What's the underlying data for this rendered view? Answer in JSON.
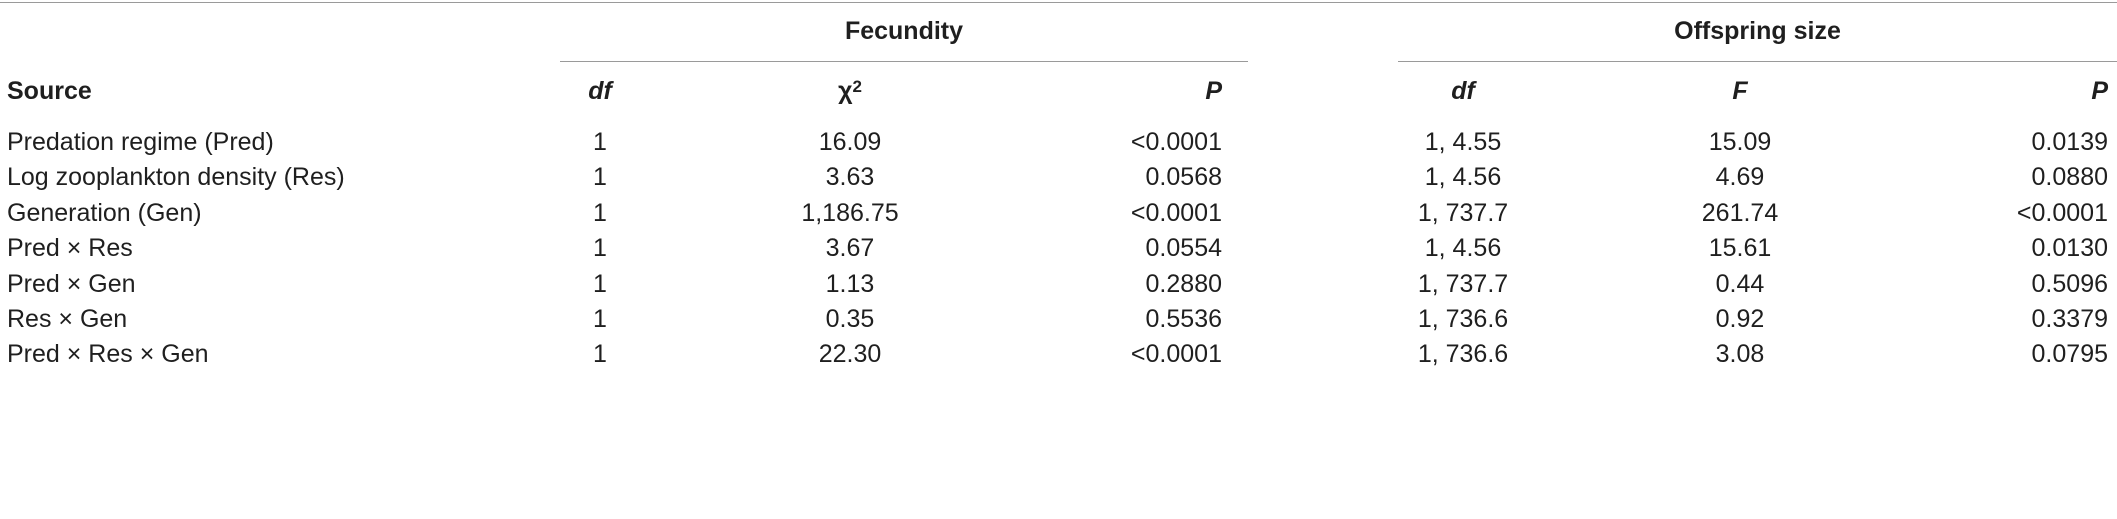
{
  "table": {
    "groups": {
      "fecundity": "Fecundity",
      "offspring": "Offspring size"
    },
    "headers": {
      "source": "Source",
      "df1": "df",
      "chi_base": "χ",
      "chi_sup": "2",
      "p1": "P",
      "df2": "df",
      "f": "F",
      "p2": "P"
    },
    "rows": [
      {
        "source": "Predation regime (Pred)",
        "df1": "1",
        "chi2": "16.09",
        "p1": "<0.0001",
        "df2": "1, 4.55",
        "f": "15.09",
        "p2": "0.0139"
      },
      {
        "source": "Log zooplankton density (Res)",
        "df1": "1",
        "chi2": "3.63",
        "p1": "0.0568",
        "df2": "1, 4.56",
        "f": "4.69",
        "p2": "0.0880"
      },
      {
        "source": "Generation (Gen)",
        "df1": "1",
        "chi2": "1,186.75",
        "p1": "<0.0001",
        "df2": "1, 737.7",
        "f": "261.74",
        "p2": "<0.0001"
      },
      {
        "source": "Pred × Res",
        "df1": "1",
        "chi2": "3.67",
        "p1": "0.0554",
        "df2": "1, 4.56",
        "f": "15.61",
        "p2": "0.0130"
      },
      {
        "source": "Pred × Gen",
        "df1": "1",
        "chi2": "1.13",
        "p1": "0.2880",
        "df2": "1, 737.7",
        "f": "0.44",
        "p2": "0.5096"
      },
      {
        "source": "Res × Gen",
        "df1": "1",
        "chi2": "0.35",
        "p1": "0.5536",
        "df2": "1, 736.6",
        "f": "0.92",
        "p2": "0.3379"
      },
      {
        "source": "Pred × Res × Gen",
        "df1": "1",
        "chi2": "22.30",
        "p1": "<0.0001",
        "df2": "1, 736.6",
        "f": "3.08",
        "p2": "0.0795"
      }
    ]
  }
}
